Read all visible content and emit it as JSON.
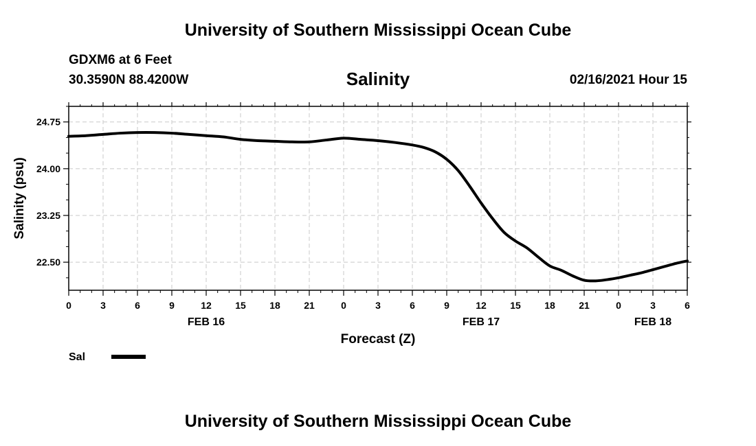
{
  "header": {
    "top_title": "University of Southern Mississippi Ocean Cube",
    "station_name": "GDXM6 at 6 Feet",
    "station_coords": "30.3590N 88.4200W",
    "datetime": "02/16/2021 Hour 15"
  },
  "footer": {
    "bottom_title": "University of Southern Mississippi Ocean Cube"
  },
  "chart_data": {
    "type": "line",
    "title": "Salinity",
    "xlabel": "Forecast (Z)",
    "ylabel": "Salinity (psu)",
    "ylim": [
      22.05,
      25.0
    ],
    "xlim": [
      0,
      54
    ],
    "x_tick_labels": [
      "0",
      "3",
      "6",
      "9",
      "12",
      "15",
      "18",
      "21",
      "0",
      "3",
      "6",
      "9",
      "12",
      "15",
      "18",
      "21",
      "0",
      "3",
      "6"
    ],
    "date_labels": [
      {
        "label": "FEB 16",
        "x": 12
      },
      {
        "label": "FEB 17",
        "x": 36
      },
      {
        "label": "FEB 18",
        "x": 51
      }
    ],
    "y_ticks": [
      22.5,
      23.25,
      24.0,
      24.75
    ],
    "y_tick_labels": [
      "22.50",
      "23.25",
      "24.00",
      "24.75"
    ],
    "grid": true,
    "legend": {
      "label": "Sal",
      "position": "bottom-left"
    },
    "series": [
      {
        "name": "Sal",
        "x": [
          0,
          1.5,
          3,
          4.5,
          6,
          7.5,
          9,
          10.5,
          12,
          13.5,
          15,
          16.5,
          18,
          19.5,
          21,
          22.5,
          24,
          25.5,
          27,
          28.5,
          30,
          31,
          32,
          33,
          34,
          35,
          36,
          37,
          38,
          39,
          40,
          41,
          42,
          43,
          44,
          45,
          46,
          47,
          48,
          49,
          50,
          51,
          52,
          53,
          54
        ],
        "values": [
          24.52,
          24.53,
          24.55,
          24.57,
          24.58,
          24.58,
          24.57,
          24.55,
          24.53,
          24.51,
          24.47,
          24.45,
          24.44,
          24.43,
          24.43,
          24.46,
          24.49,
          24.47,
          24.45,
          24.42,
          24.38,
          24.34,
          24.27,
          24.15,
          23.97,
          23.72,
          23.45,
          23.2,
          22.98,
          22.84,
          22.73,
          22.58,
          22.44,
          22.37,
          22.28,
          22.21,
          22.2,
          22.22,
          22.25,
          22.29,
          22.33,
          22.38,
          22.43,
          22.48,
          22.52
        ]
      }
    ]
  }
}
